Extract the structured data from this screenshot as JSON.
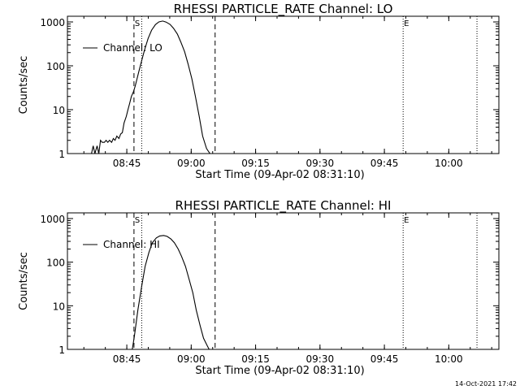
{
  "footer": {
    "timestamp": "14-Oct-2021 17:42"
  },
  "chart_data": [
    {
      "type": "line",
      "title": "RHESSI PARTICLE_RATE Channel: LO",
      "xlabel": "Start Time (09-Apr-02 08:31:10)",
      "ylabel": "Counts/sec",
      "y_scale": "log",
      "x_units": "minutes after 08:31:10",
      "xlim": [
        0,
        100.5
      ],
      "ylim": [
        1,
        1000
      ],
      "x_ticks": [
        {
          "value": 13.83,
          "label": "08:45"
        },
        {
          "value": 28.83,
          "label": "09:00"
        },
        {
          "value": 43.83,
          "label": "09:15"
        },
        {
          "value": 58.83,
          "label": "09:30"
        },
        {
          "value": 73.83,
          "label": "09:45"
        },
        {
          "value": 88.83,
          "label": "10:00"
        }
      ],
      "y_ticks": [
        {
          "value": 1,
          "label": "1"
        },
        {
          "value": 10,
          "label": "10"
        },
        {
          "value": 100,
          "label": "100"
        },
        {
          "value": 1000,
          "label": "1000"
        }
      ],
      "legend": {
        "position": "top-left",
        "entries": [
          "Channel: LO"
        ]
      },
      "markers": [
        {
          "x": 15.5,
          "style": "dashed",
          "label": "S"
        },
        {
          "x": 17.3,
          "style": "dotted",
          "label": ""
        },
        {
          "x": 34.4,
          "style": "dashed",
          "label": ""
        },
        {
          "x": 78.2,
          "style": "dotted",
          "label": "E"
        },
        {
          "x": 95.4,
          "style": "dotted",
          "label": ""
        }
      ],
      "series": [
        {
          "name": "Channel: LO",
          "x": [
            5.6,
            6.0,
            6.4,
            6.9,
            7.3,
            7.7,
            8.1,
            8.6,
            9.0,
            9.4,
            9.8,
            10.3,
            10.7,
            11.1,
            11.5,
            12.0,
            12.4,
            12.8,
            13.2,
            13.7,
            14.1,
            14.5,
            14.9,
            15.4,
            15.8,
            16.2,
            16.6,
            17.1,
            17.9,
            18.8,
            19.6,
            20.5,
            21.3,
            22.2,
            23.0,
            23.9,
            24.7,
            25.6,
            26.4,
            27.3,
            28.1,
            29.0,
            29.8,
            30.7,
            31.5,
            32.4,
            33.2
          ],
          "y": [
            1,
            1.5,
            1,
            1.5,
            1,
            2,
            1.8,
            1.8,
            2,
            1.8,
            2,
            1.8,
            2.2,
            2,
            2.5,
            2.2,
            2.8,
            3,
            5,
            7,
            10,
            14,
            20,
            26,
            35,
            50,
            72,
            110,
            220,
            420,
            650,
            870,
            1000,
            1050,
            990,
            880,
            720,
            530,
            350,
            210,
            110,
            50,
            20,
            7,
            2.5,
            1.3,
            1
          ]
        }
      ]
    },
    {
      "type": "line",
      "title": "RHESSI PARTICLE_RATE Channel: HI",
      "xlabel": "Start Time (09-Apr-02 08:31:10)",
      "ylabel": "Counts/sec",
      "y_scale": "log",
      "x_units": "minutes after 08:31:10",
      "xlim": [
        0,
        100.5
      ],
      "ylim": [
        1,
        1000
      ],
      "x_ticks": [
        {
          "value": 13.83,
          "label": "08:45"
        },
        {
          "value": 28.83,
          "label": "09:00"
        },
        {
          "value": 43.83,
          "label": "09:15"
        },
        {
          "value": 58.83,
          "label": "09:30"
        },
        {
          "value": 73.83,
          "label": "09:45"
        },
        {
          "value": 88.83,
          "label": "10:00"
        }
      ],
      "y_ticks": [
        {
          "value": 1,
          "label": "1"
        },
        {
          "value": 10,
          "label": "10"
        },
        {
          "value": 100,
          "label": "100"
        },
        {
          "value": 1000,
          "label": "1000"
        }
      ],
      "legend": {
        "position": "top-left",
        "entries": [
          "Channel: HI"
        ]
      },
      "markers": [
        {
          "x": 15.5,
          "style": "dashed",
          "label": "S"
        },
        {
          "x": 17.3,
          "style": "dotted",
          "label": ""
        },
        {
          "x": 34.4,
          "style": "dashed",
          "label": ""
        },
        {
          "x": 78.2,
          "style": "dotted",
          "label": "E"
        },
        {
          "x": 95.4,
          "style": "dotted",
          "label": ""
        }
      ],
      "series": [
        {
          "name": "Channel: HI",
          "x": [
            15.1,
            15.6,
            16.4,
            17.3,
            18.1,
            19.0,
            19.8,
            20.7,
            21.5,
            22.4,
            23.2,
            24.1,
            24.9,
            25.8,
            26.6,
            27.5,
            28.3,
            29.2,
            30.0,
            30.9,
            31.7,
            32.6,
            33.0
          ],
          "y": [
            1,
            2,
            8,
            28,
            80,
            170,
            280,
            360,
            400,
            410,
            390,
            340,
            280,
            200,
            135,
            80,
            42,
            20,
            8,
            3.5,
            1.8,
            1.2,
            1
          ]
        }
      ]
    }
  ]
}
